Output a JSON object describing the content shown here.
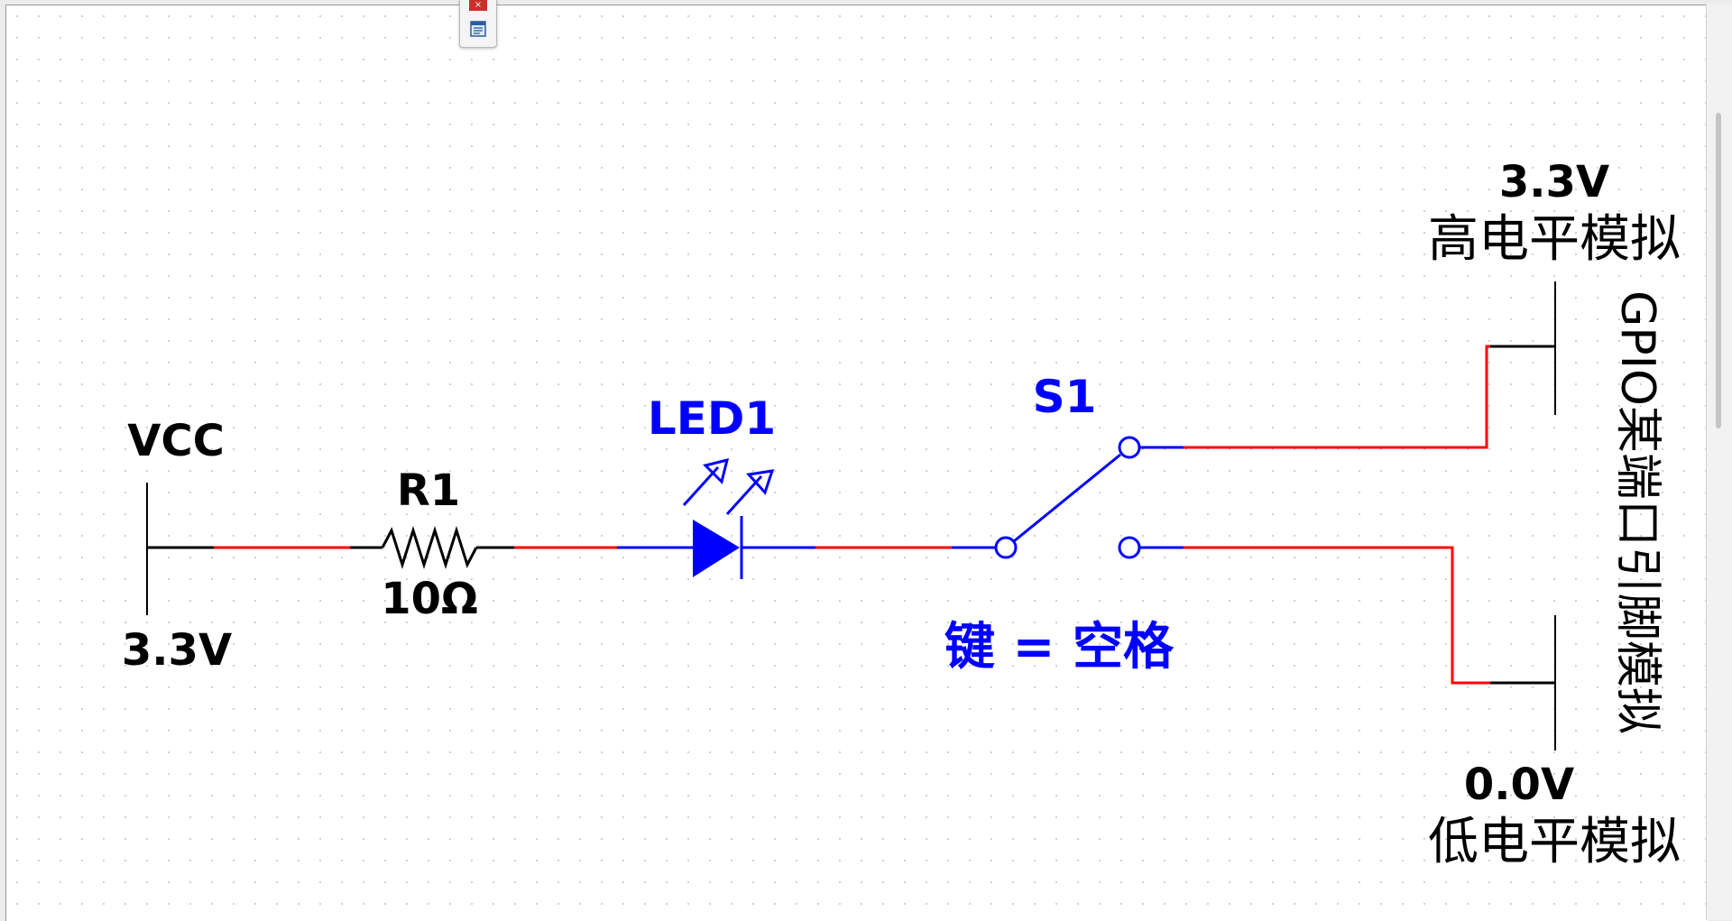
{
  "toolbox": {
    "close_label": "×",
    "icon": "list-window-icon"
  },
  "components": {
    "vcc": {
      "name": "VCC",
      "value": "3.3V"
    },
    "r1": {
      "name": "R1",
      "value": "10Ω"
    },
    "led1": {
      "name": "LED1"
    },
    "s1": {
      "name": "S1",
      "key_label": "键 = 空格"
    },
    "high": {
      "value": "3.3V",
      "label": "高电平模拟"
    },
    "low": {
      "value": "0.0V",
      "label": "低电平模拟"
    },
    "gpio": {
      "label": "GPIO某端口引脚模拟"
    }
  },
  "colors": {
    "wire_active": "#ff0000",
    "component": "#0000ff",
    "symbol": "#000000",
    "close_button": "#c9302c"
  }
}
